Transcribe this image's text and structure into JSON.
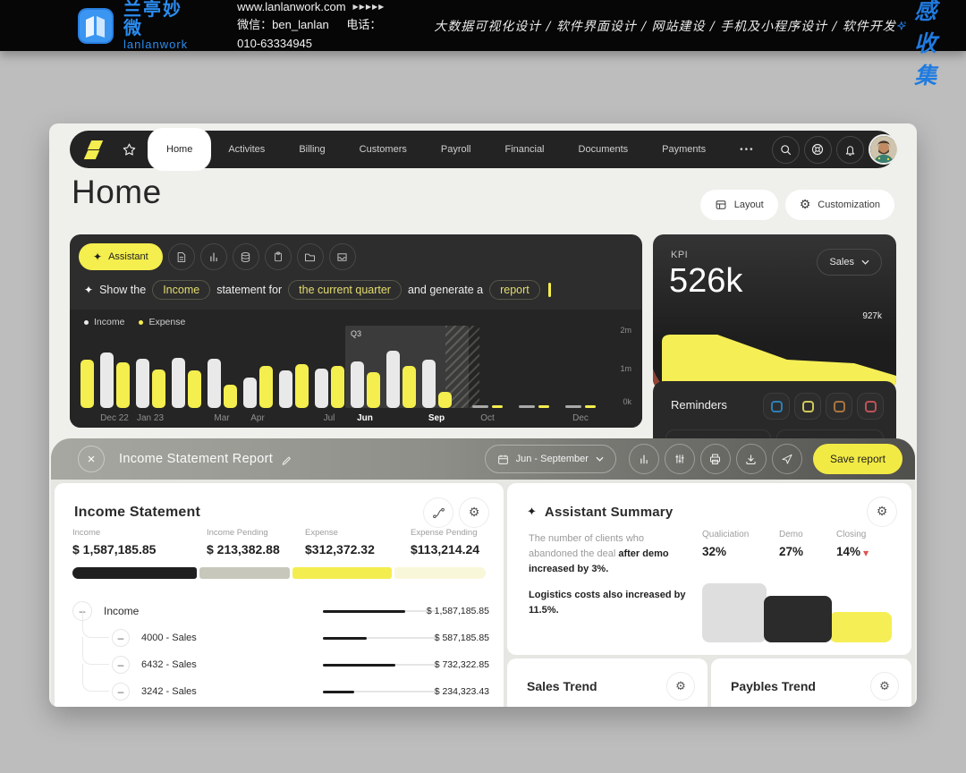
{
  "promo_bar": {
    "brand_cn": "兰亭妙微",
    "brand_en": "lanlanwork",
    "website": "www.lanlanwork.com",
    "arrows": "▶▶▶▶▶",
    "wechat": "微信：ben_lanlan",
    "phone": "电话：010-63334945",
    "services": "大数据可视化设计 / 软件界面设计 / 网站建设 / 手机及小程序设计 / 软件开发",
    "collect": "灵感收集",
    "accent_blue": "#2a8cf0"
  },
  "navbar": {
    "tabs": [
      {
        "label": "Home",
        "active": true
      },
      {
        "label": "Activites"
      },
      {
        "label": "Billing"
      },
      {
        "label": "Customers"
      },
      {
        "label": "Payroll"
      },
      {
        "label": "Financial"
      },
      {
        "label": "Documents"
      },
      {
        "label": "Payments"
      }
    ],
    "more": "•••"
  },
  "page": {
    "title": "Home",
    "layout_button": "Layout",
    "customization_button": "Customization"
  },
  "assistant_panel": {
    "assistant_button": "Assistant",
    "prompt": [
      {
        "text": "Show the"
      },
      {
        "text": "Income",
        "pill": true
      },
      {
        "text": "statement for"
      },
      {
        "text": "the current quarter",
        "pill": true
      },
      {
        "text": "and generate a"
      },
      {
        "text": "report",
        "pill": true
      }
    ],
    "legend": [
      {
        "label": "Income",
        "color": "#e9e9e9"
      },
      {
        "label": "Expense",
        "color": "#f4ee4e"
      }
    ],
    "chart": {
      "type": "bar",
      "series": [
        "Income",
        "Expense"
      ],
      "y_axis": [
        "2m",
        "1m",
        "0k"
      ],
      "highlight": "Q3",
      "unit": "millions",
      "pairs": [
        {
          "label": "",
          "income": null,
          "expense": 1.25,
          "partial": true
        },
        {
          "label": "Dec 22",
          "income": 1.45,
          "expense": 1.18
        },
        {
          "label": "Jan 23",
          "income": 1.28,
          "expense": 1.0
        },
        {
          "label": "",
          "income": 1.3,
          "expense": 0.98
        },
        {
          "label": "Mar",
          "income": 1.28,
          "expense": 0.6
        },
        {
          "label": "Apr",
          "income": 0.78,
          "expense": 1.1
        },
        {
          "label": "",
          "income": 0.98,
          "expense": 1.15
        },
        {
          "label": "Jul",
          "income": 1.02,
          "expense": 1.1
        },
        {
          "label": "Jun",
          "income": 1.2,
          "expense": 0.92,
          "bold": true
        },
        {
          "label": "",
          "income": 1.48,
          "expense": 1.1
        },
        {
          "label": "Sep",
          "income": 1.25,
          "expense": 0.42,
          "bold": true
        }
      ],
      "flat_labels": [
        "Oct",
        "",
        "Dec"
      ]
    }
  },
  "kpi_card": {
    "title": "KPI",
    "value": "526k",
    "selector": "Sales",
    "peak_label": "927k",
    "trend_shape": [
      0.9,
      0.9,
      0.55,
      0.5,
      0.47,
      0.35,
      0.2
    ],
    "area_color": "#f5ee55"
  },
  "reminders_card": {
    "title": "Reminders",
    "colors": [
      "#2d7fb4",
      "#cfc95c",
      "#a9743e",
      "#bf5156"
    ]
  },
  "modal": {
    "title": "Income Statement Report",
    "date_range": "Jun - September",
    "save_button": "Save report",
    "income_statement": {
      "title": "Income Statement",
      "stats": [
        {
          "label": "Income",
          "value": "$ 1,587,185.85"
        },
        {
          "label": "Income Pending",
          "value": "$ 213,382.88"
        },
        {
          "label": "Expense",
          "value": "$312,372.32"
        },
        {
          "label": "Expense Pending",
          "value": "$113,214.24"
        }
      ],
      "segments": [
        {
          "color": "#1f1f1f",
          "width": 30
        },
        {
          "color": "#c7c7bb",
          "width": 22
        },
        {
          "color": "#f4ed4f",
          "width": 24
        },
        {
          "color": "#f9f7d9",
          "width": 22
        }
      ],
      "rows": [
        {
          "name": "Income",
          "value": "$ 1,587,185.85",
          "fill": 0.72,
          "level": 0
        },
        {
          "name": "4000 - Sales",
          "value": "$ 587,185.85",
          "fill": 0.38,
          "level": 1
        },
        {
          "name": "6432 - Sales",
          "value": "$ 732,322.85",
          "fill": 0.63,
          "level": 1
        },
        {
          "name": "3242 - Sales",
          "value": "$ 234,323.43",
          "fill": 0.27,
          "level": 1
        }
      ]
    },
    "assistant_summary": {
      "title": "Assistant Summary",
      "p1_normal": "The number of clients who abandoned the deal ",
      "p1_bold": "after demo increased by 3%.",
      "p2_bold": "Logistics costs also increased by 11.5%.",
      "stats": [
        {
          "label": "Qualiciation",
          "value": "32%"
        },
        {
          "label": "Demo",
          "value": "27%"
        },
        {
          "label": "Closing",
          "value": "14%",
          "down": true
        }
      ],
      "bars": [
        {
          "color": "#dedede",
          "height": 66,
          "width": 72
        },
        {
          "color": "#2b2b2b",
          "height": 52,
          "width": 76
        },
        {
          "color": "#f5ee55",
          "height": 34,
          "width": 70
        }
      ]
    },
    "sales_trend_title": "Sales Trend",
    "paybles_trend_title": "Paybles Trend"
  }
}
